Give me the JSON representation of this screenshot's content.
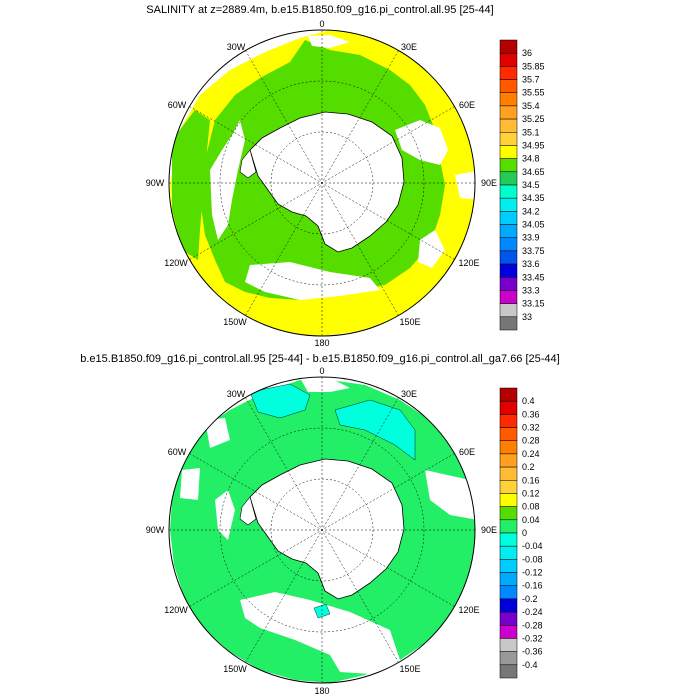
{
  "panels": [
    {
      "title": "SALINITY at z=2889.4m, b.e15.B1850.f09_g16.pi_control.all.95 [25-44]",
      "colorbar": {
        "labels": [
          "36",
          "35.85",
          "35.7",
          "35.55",
          "35.4",
          "35.25",
          "35.1",
          "34.95",
          "34.8",
          "34.65",
          "34.5",
          "34.35",
          "34.2",
          "34.05",
          "33.9",
          "33.75",
          "33.6",
          "33.45",
          "33.3",
          "33.15",
          "33"
        ],
        "colors": [
          "#b30000",
          "#e00000",
          "#ff2a00",
          "#ff5a00",
          "#ff8000",
          "#ffa020",
          "#ffbb33",
          "#ffd23c",
          "#ffff00",
          "#55dd00",
          "#22cc55",
          "#00ffcc",
          "#00eeee",
          "#00ccff",
          "#00aaff",
          "#0088ff",
          "#0055ee",
          "#0000dd",
          "#7700cc",
          "#cc00cc",
          "#c8c8c8",
          "#777777"
        ]
      }
    },
    {
      "title": "b.e15.B1850.f09_g16.pi_control.all.95 [25-44] - b.e15.B1850.f09_g16.pi_control.all_ga7.66 [25-44]",
      "colorbar": {
        "labels": [
          "0.4",
          "0.36",
          "0.32",
          "0.28",
          "0.24",
          "0.2",
          "0.16",
          "0.12",
          "0.08",
          "0.04",
          "0",
          "-0.04",
          "-0.08",
          "-0.12",
          "-0.16",
          "-0.2",
          "-0.24",
          "-0.28",
          "-0.32",
          "-0.36",
          "-0.4"
        ],
        "colors": [
          "#b30000",
          "#e00000",
          "#ff2a00",
          "#ff5a00",
          "#ff8000",
          "#ffa020",
          "#ffbb33",
          "#ffd23c",
          "#ffff00",
          "#55dd00",
          "#22ee66",
          "#00ffdd",
          "#00eeee",
          "#00ccff",
          "#00aaff",
          "#0088ff",
          "#0000dd",
          "#7700cc",
          "#cc00cc",
          "#c8c8c8",
          "#999999",
          "#777777"
        ]
      }
    }
  ],
  "longitude_labels": {
    "top": "0",
    "bottom": "180",
    "w30": "30W",
    "e30": "30E",
    "w60": "60W",
    "e60": "60E",
    "w90": "90W",
    "e90": "90E",
    "w120": "120W",
    "e120": "120E",
    "w150": "150W",
    "e150": "150E"
  },
  "colors": {
    "green": "#55dd00",
    "yellow": "#ffff00",
    "diff_green": "#22ee66",
    "cyan": "#00ffdd",
    "land": "#ffffff",
    "grid": "#000000"
  }
}
